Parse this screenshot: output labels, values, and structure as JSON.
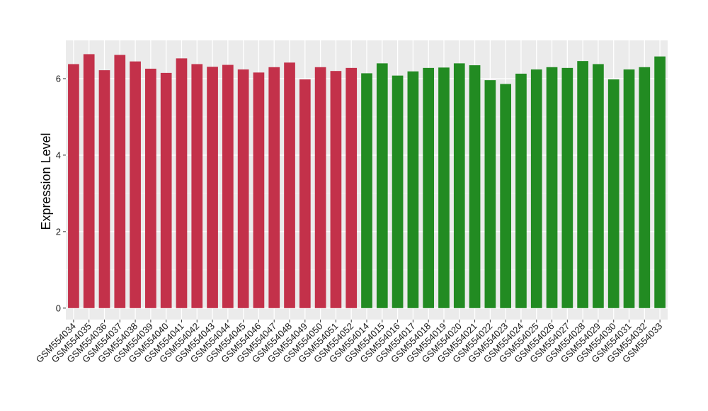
{
  "chart_data": {
    "type": "bar",
    "title": "",
    "xlabel": "",
    "ylabel": "Expression Level",
    "ylim": [
      -0.3,
      7
    ],
    "yticks": [
      0,
      2,
      4,
      6
    ],
    "grid": true,
    "legend": "none",
    "panel_background": "#ebebeb",
    "categories": [
      "GSM554034",
      "GSM554035",
      "GSM554036",
      "GSM554037",
      "GSM554038",
      "GSM554039",
      "GSM554040",
      "GSM554041",
      "GSM554042",
      "GSM554043",
      "GSM554044",
      "GSM554045",
      "GSM554046",
      "GSM554047",
      "GSM554048",
      "GSM554049",
      "GSM554050",
      "GSM554051",
      "GSM554052",
      "GSM554014",
      "GSM554015",
      "GSM554016",
      "GSM554017",
      "GSM554018",
      "GSM554019",
      "GSM554020",
      "GSM554021",
      "GSM554022",
      "GSM554023",
      "GSM554024",
      "GSM554025",
      "GSM554026",
      "GSM554027",
      "GSM554028",
      "GSM554029",
      "GSM554030",
      "GSM554031",
      "GSM554032",
      "GSM554033"
    ],
    "values": [
      6.38,
      6.64,
      6.22,
      6.62,
      6.45,
      6.26,
      6.15,
      6.53,
      6.38,
      6.31,
      6.36,
      6.24,
      6.16,
      6.3,
      6.42,
      5.98,
      6.3,
      6.2,
      6.28,
      6.14,
      6.4,
      6.08,
      6.19,
      6.28,
      6.29,
      6.4,
      6.35,
      5.96,
      5.86,
      6.13,
      6.24,
      6.3,
      6.28,
      6.46,
      6.38,
      5.98,
      6.24,
      6.3,
      6.58
    ],
    "colors": [
      "#c3314a",
      "#c3314a",
      "#c3314a",
      "#c3314a",
      "#c3314a",
      "#c3314a",
      "#c3314a",
      "#c3314a",
      "#c3314a",
      "#c3314a",
      "#c3314a",
      "#c3314a",
      "#c3314a",
      "#c3314a",
      "#c3314a",
      "#c3314a",
      "#c3314a",
      "#c3314a",
      "#c3314a",
      "#228b22",
      "#228b22",
      "#228b22",
      "#228b22",
      "#228b22",
      "#228b22",
      "#228b22",
      "#228b22",
      "#228b22",
      "#228b22",
      "#228b22",
      "#228b22",
      "#228b22",
      "#228b22",
      "#228b22",
      "#228b22",
      "#228b22",
      "#228b22",
      "#228b22",
      "#228b22"
    ]
  }
}
